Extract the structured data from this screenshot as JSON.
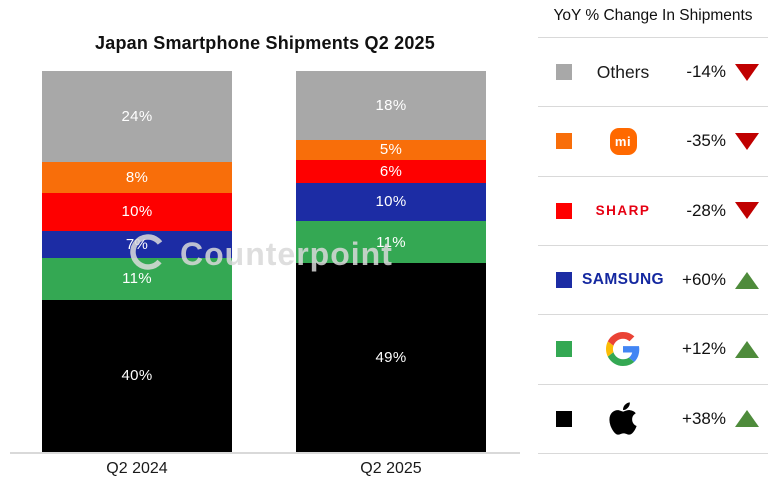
{
  "chart_data": {
    "type": "bar",
    "stacked": true,
    "title": "Japan Smartphone Shipments Q2 2025",
    "categories": [
      "Q2 2024",
      "Q2 2025"
    ],
    "unit": "%",
    "ylim": [
      0,
      100
    ],
    "grid": false,
    "legend_position": "right",
    "series": [
      {
        "name": "Others",
        "color": "#a8a8a8",
        "values": [
          24,
          18
        ]
      },
      {
        "name": "Xiaomi",
        "color": "#f86e0a",
        "values": [
          8,
          5
        ]
      },
      {
        "name": "Sharp",
        "color": "#fe0000",
        "values": [
          10,
          6
        ]
      },
      {
        "name": "Samsung",
        "color": "#1c2ca4",
        "values": [
          7,
          10
        ]
      },
      {
        "name": "Google",
        "color": "#34a853",
        "values": [
          11,
          11
        ]
      },
      {
        "name": "Apple",
        "color": "#000000",
        "values": [
          40,
          49
        ]
      }
    ]
  },
  "legend": {
    "header": "YoY % Change In Shipments",
    "up_color": "#4e8b3b",
    "down_color": "#c00000",
    "rows": [
      {
        "brand": "Others",
        "logo": "others",
        "logo_text": "Others",
        "swatch": "#a8a8a8",
        "change": "-14%",
        "direction": "down"
      },
      {
        "brand": "Xiaomi",
        "logo": "xiaomi",
        "logo_text": "mi",
        "swatch": "#f86e0a",
        "change": "-35%",
        "direction": "down"
      },
      {
        "brand": "Sharp",
        "logo": "sharp",
        "logo_text": "SHARP",
        "swatch": "#fe0000",
        "change": "-28%",
        "direction": "down"
      },
      {
        "brand": "Samsung",
        "logo": "samsung",
        "logo_text": "SAMSUNG",
        "swatch": "#1c2ca4",
        "change": "+60%",
        "direction": "up"
      },
      {
        "brand": "Google",
        "logo": "google",
        "logo_text": "G",
        "swatch": "#34a853",
        "change": "+12%",
        "direction": "up"
      },
      {
        "brand": "Apple",
        "logo": "apple",
        "logo_text": "Apple",
        "swatch": "#000000",
        "change": "+38%",
        "direction": "up"
      }
    ]
  },
  "watermark": {
    "text": "Counterpoint"
  }
}
